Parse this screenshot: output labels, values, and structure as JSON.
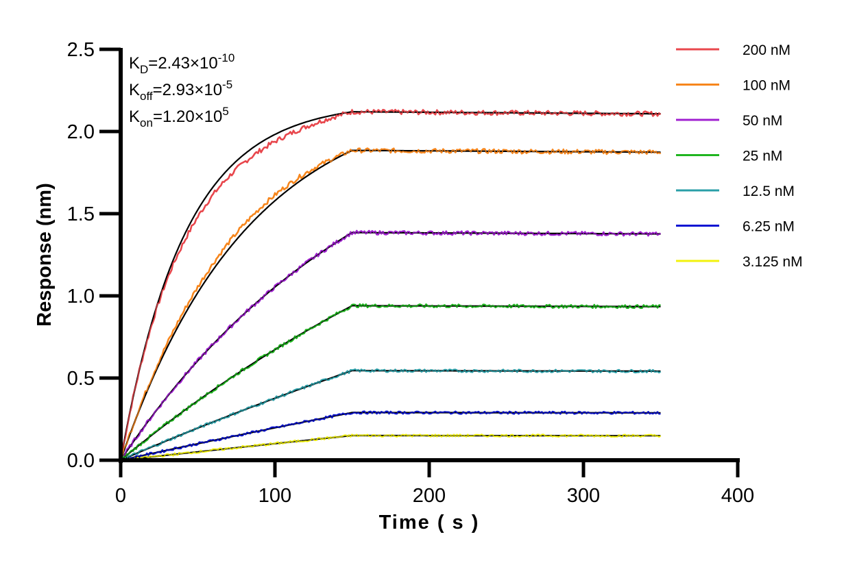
{
  "chart_data": {
    "type": "line",
    "title": "",
    "xlabel": "Time ( s )",
    "ylabel": "Response (nm)",
    "xlim": [
      0,
      400
    ],
    "ylim": [
      0,
      2.5
    ],
    "xticks": [
      0,
      100,
      200,
      300,
      400
    ],
    "yticks": [
      0.0,
      0.5,
      1.0,
      1.5,
      2.0,
      2.5
    ],
    "xtick_labels": [
      "0",
      "100",
      "200",
      "300",
      "400"
    ],
    "ytick_labels": [
      "0.0",
      "0.5",
      "1.0",
      "1.5",
      "2.0",
      "2.5"
    ],
    "grid": false,
    "legend_position": "right",
    "association_end_s": 150,
    "experiment_end_s": 350,
    "annotations": {
      "kd": {
        "label": "K",
        "sub": "D",
        "value": "=2.43×10",
        "exp": "-10"
      },
      "koff": {
        "label": "K",
        "sub": "off",
        "value": "=2.93×10",
        "exp": "-5"
      },
      "kon": {
        "label": "K",
        "sub": "on",
        "value": "=1.20×10",
        "exp": "5"
      }
    },
    "kon": 120000,
    "koff": 2.93e-05,
    "fit_color": "#000000",
    "series": [
      {
        "name": "200 nM",
        "conc_nM": 200,
        "color": "#E8474C",
        "plateau": 2.12
      },
      {
        "name": "100 nM",
        "conc_nM": 100,
        "color": "#F7861C",
        "plateau": 1.885
      },
      {
        "name": "50 nM",
        "conc_nM": 50,
        "color": "#A020D0",
        "plateau": 1.385
      },
      {
        "name": "25 nM",
        "conc_nM": 25,
        "color": "#1FB51F",
        "plateau": 0.94
      },
      {
        "name": "12.5 nM",
        "conc_nM": 12.5,
        "color": "#2A9FA8",
        "plateau": 0.545
      },
      {
        "name": "6.25 nM",
        "conc_nM": 6.25,
        "color": "#0A14D2",
        "plateau": 0.29
      },
      {
        "name": "3.125 nM",
        "conc_nM": 3.125,
        "color": "#F2F20C",
        "plateau": 0.15
      }
    ]
  }
}
